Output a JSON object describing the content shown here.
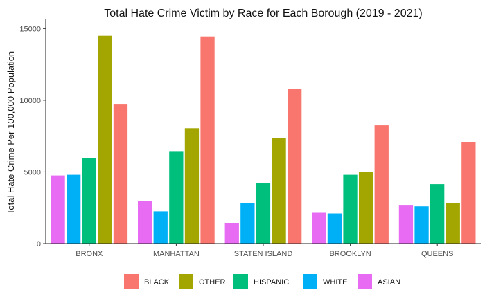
{
  "chart_data": {
    "type": "bar",
    "title": "Total Hate Crime Victim by Race for Each Borough (2019 - 2021)",
    "xlabel": "",
    "ylabel": "Total Hate Crime Per 100,000 Population",
    "categories": [
      "BRONX",
      "MANHATTAN",
      "STATEN ISLAND",
      "BROOKLYN",
      "QUEENS"
    ],
    "ylim": [
      0,
      15500
    ],
    "yticks": [
      0,
      5000,
      10000,
      15000
    ],
    "grid": false,
    "legend_position": "bottom",
    "legend_order": [
      "BLACK",
      "OTHER",
      "HISPANIC",
      "WHITE",
      "ASIAN"
    ],
    "series": [
      {
        "name": "ASIAN",
        "color": "#E76BF3",
        "values": [
          4750,
          2950,
          1450,
          2150,
          2700
        ]
      },
      {
        "name": "WHITE",
        "color": "#00B0F6",
        "values": [
          4800,
          2250,
          2850,
          2100,
          2600
        ]
      },
      {
        "name": "HISPANIC",
        "color": "#00BF7D",
        "values": [
          5950,
          6450,
          4200,
          4800,
          4150
        ]
      },
      {
        "name": "OTHER",
        "color": "#A3A500",
        "values": [
          14500,
          8050,
          7350,
          5000,
          2850
        ]
      },
      {
        "name": "BLACK",
        "color": "#F8766D",
        "values": [
          9750,
          14450,
          10800,
          8250,
          7100
        ]
      }
    ]
  }
}
